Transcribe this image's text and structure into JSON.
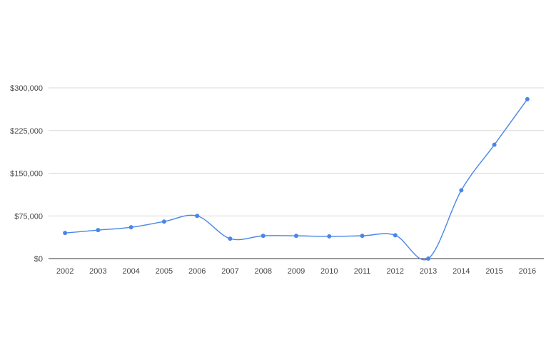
{
  "chart_data": {
    "type": "line",
    "title": "",
    "xlabel": "",
    "ylabel": "",
    "categories": [
      "2002",
      "2003",
      "2004",
      "2005",
      "2006",
      "2007",
      "2008",
      "2009",
      "2010",
      "2011",
      "2012",
      "2013",
      "2014",
      "2015",
      "2016"
    ],
    "series": [
      {
        "values": [
          45000,
          50000,
          55000,
          65000,
          75000,
          35000,
          40000,
          40000,
          39000,
          40000,
          41000,
          0,
          120000,
          200000,
          280000
        ]
      }
    ],
    "ylim": [
      0,
      300000
    ],
    "yticks": [
      0,
      75000,
      150000,
      225000,
      300000
    ],
    "ytick_labels": [
      "$0",
      "$75,000",
      "$150,000",
      "$225,000",
      "$300,000"
    ],
    "smooth": true,
    "grid": true,
    "legend": "none",
    "colors": {
      "series": "#4a86e8",
      "grid": "#d9d9d9",
      "axis": "#333333",
      "text": "#444444"
    }
  }
}
